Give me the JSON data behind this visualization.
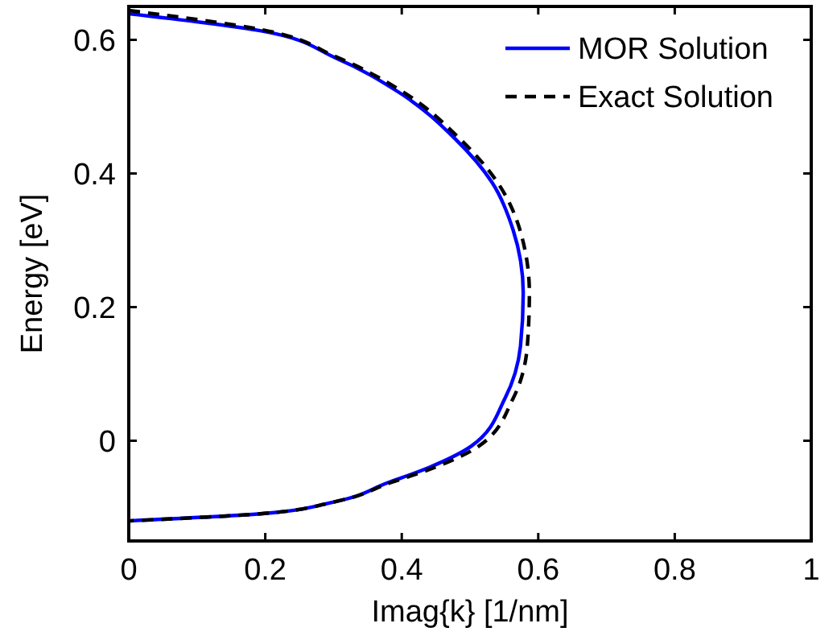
{
  "chart_data": {
    "type": "line",
    "xlabel": "Imag{k} [1/nm]",
    "ylabel": "Energy [eV]",
    "xlim": [
      0,
      1
    ],
    "ylim": [
      -0.15,
      0.65
    ],
    "xticks": [
      0,
      0.2,
      0.4,
      0.6,
      0.8,
      1
    ],
    "yticks": [
      0,
      0.2,
      0.4,
      0.6
    ],
    "grid": false,
    "legend": "top right",
    "series": [
      {
        "name": "MOR Solution",
        "color": "#0000ff",
        "line_style": "solid",
        "x": [
          0,
          0.196,
          0.303,
          0.395,
          0.479,
          0.532,
          0.563,
          0.578,
          0.574,
          0.551,
          0.502,
          0.44,
          0.379,
          0.303,
          0.196,
          0
        ],
        "values": [
          0.639,
          0.613,
          0.573,
          0.522,
          0.451,
          0.387,
          0.316,
          0.221,
          0.142,
          0.063,
          -0.008,
          -0.04,
          -0.063,
          -0.091,
          -0.109,
          -0.12
        ]
      },
      {
        "name": "Exact Solution",
        "color": "#000000",
        "line_style": "dashed",
        "x": [
          0,
          0.196,
          0.303,
          0.402,
          0.486,
          0.54,
          0.573,
          0.587,
          0.584,
          0.563,
          0.513,
          0.448,
          0.383,
          0.303,
          0.196,
          0
        ],
        "values": [
          0.644,
          0.615,
          0.575,
          0.522,
          0.451,
          0.387,
          0.316,
          0.221,
          0.142,
          0.063,
          -0.008,
          -0.04,
          -0.063,
          -0.091,
          -0.109,
          -0.12
        ]
      }
    ]
  }
}
